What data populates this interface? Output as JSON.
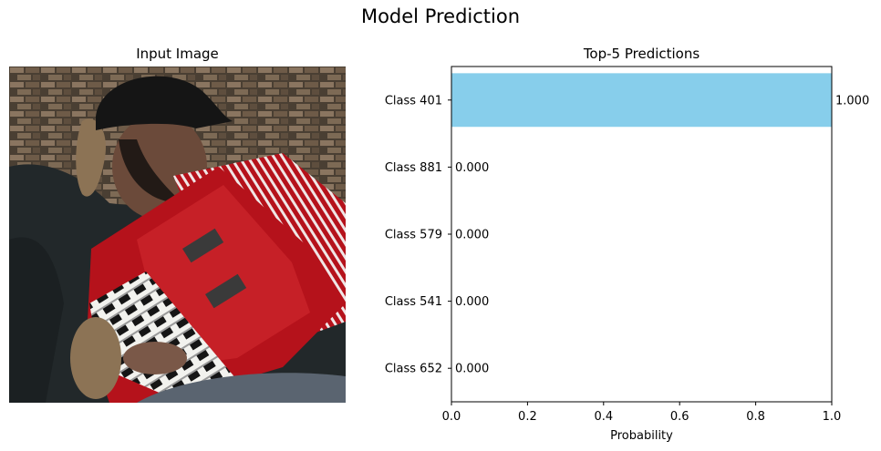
{
  "figure": {
    "title": "Model Prediction"
  },
  "image_panel": {
    "title": "Input Image"
  },
  "chart_data": {
    "type": "bar",
    "orientation": "horizontal",
    "title": "Top-5 Predictions",
    "xlabel": "Probability",
    "ylabel": "",
    "xlim": [
      0,
      1.0
    ],
    "xticks": [
      "0.0",
      "0.2",
      "0.4",
      "0.6",
      "0.8",
      "1.0"
    ],
    "categories": [
      "Class 401",
      "Class 881",
      "Class 579",
      "Class 541",
      "Class 652"
    ],
    "values": [
      1.0,
      0.0,
      0.0,
      0.0,
      0.0
    ],
    "data_labels": [
      "1.000",
      "0.000",
      "0.000",
      "0.000",
      "0.000"
    ],
    "bar_color": "#87ceeb",
    "grid": false
  }
}
